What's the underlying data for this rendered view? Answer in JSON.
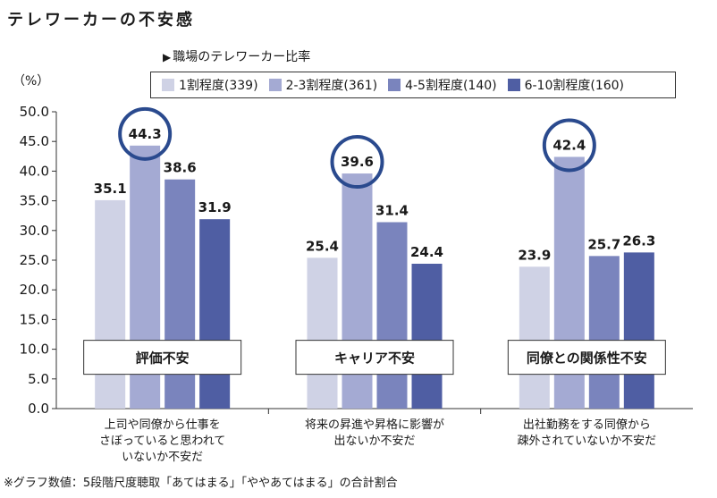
{
  "title": "テレワーカーの不安感",
  "legend_title": "職場のテレワーカー比率",
  "unit": "（%）",
  "footnote": "※グラフ数値：5段階尺度聴取「あてはまる」「ややあてはまる」の合計割合",
  "colors": [
    "#cfd2e5",
    "#a4aad3",
    "#7a84bd",
    "#4f5ea3"
  ],
  "highlight_color": "#2a4a8e",
  "chart_data": {
    "type": "bar",
    "title": "テレワーカーの不安感",
    "ylabel": "（%）",
    "ylim": [
      0,
      50
    ],
    "yticks": [
      "0.0",
      "5.0",
      "10.0",
      "15.0",
      "20.0",
      "25.0",
      "30.0",
      "35.0",
      "40.0",
      "45.0",
      "50.0"
    ],
    "categories": [
      "評価不安",
      "キャリア不安",
      "同僚との関係性不安"
    ],
    "category_descriptions": [
      [
        "上司や同僚から仕事を",
        "さぼっていると思われて",
        "いないか不安だ"
      ],
      [
        "将来の昇進や昇格に影響が",
        "出ないか不安だ"
      ],
      [
        "出社勤務をする同僚から",
        "疎外されていないか不安だ"
      ]
    ],
    "series": [
      {
        "name": "1割程度(339)",
        "values": [
          35.1,
          25.4,
          23.9
        ]
      },
      {
        "name": "2-3割程度(361)",
        "values": [
          44.3,
          39.6,
          42.4
        ]
      },
      {
        "name": "4-5割程度(140)",
        "values": [
          38.6,
          31.4,
          25.7
        ]
      },
      {
        "name": "6-10割程度(160)",
        "values": [
          31.9,
          24.4,
          26.3
        ]
      }
    ],
    "labels": [
      [
        "35.1",
        "44.3",
        "38.6",
        "31.9"
      ],
      [
        "25.4",
        "39.6",
        "31.4",
        "24.4"
      ],
      [
        "23.9",
        "42.4",
        "25.7",
        "26.3"
      ]
    ],
    "highlighted_series": 1
  }
}
